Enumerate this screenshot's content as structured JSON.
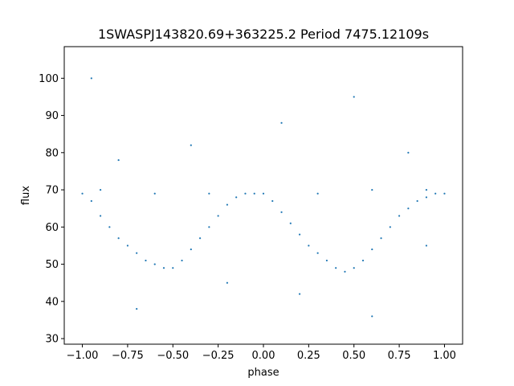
{
  "chart_data": {
    "type": "scatter",
    "title": "1SWASPJ143820.69+363225.2 Period 7475.12109s",
    "xlabel": "phase",
    "ylabel": "flux",
    "xlim": [
      -1.1,
      1.1
    ],
    "ylim": [
      28.5,
      108.5
    ],
    "xticks": [
      -1.0,
      -0.75,
      -0.5,
      -0.25,
      0.0,
      0.25,
      0.5,
      0.75,
      1.0
    ],
    "xtick_labels": [
      "−1.00",
      "−0.75",
      "−0.50",
      "−0.25",
      "0.00",
      "0.25",
      "0.50",
      "0.75",
      "1.00"
    ],
    "yticks": [
      30,
      40,
      50,
      60,
      70,
      80,
      90,
      100
    ],
    "ytick_labels": [
      "30",
      "40",
      "50",
      "60",
      "70",
      "80",
      "90",
      "100"
    ],
    "marker_color": "#1f77b4",
    "grid": false,
    "series": [
      {
        "description_points": "phase-folded light curve; dense band near flux 69 with eclipse dips to ~48 at phase -0.55 and 0.45",
        "points": [
          [
            -1.0,
            69
          ],
          [
            -0.95,
            67
          ],
          [
            -0.9,
            63
          ],
          [
            -0.85,
            60
          ],
          [
            -0.8,
            57
          ],
          [
            -0.75,
            55
          ],
          [
            -0.7,
            53
          ],
          [
            -0.65,
            51
          ],
          [
            -0.6,
            50
          ],
          [
            -0.55,
            49
          ],
          [
            -0.5,
            49
          ],
          [
            -0.45,
            51
          ],
          [
            -0.4,
            54
          ],
          [
            -0.35,
            57
          ],
          [
            -0.3,
            60
          ],
          [
            -0.25,
            63
          ],
          [
            -0.2,
            66
          ],
          [
            -0.15,
            68
          ],
          [
            -0.1,
            69
          ],
          [
            -0.05,
            69
          ],
          [
            0.0,
            69
          ],
          [
            0.05,
            67
          ],
          [
            0.1,
            64
          ],
          [
            0.15,
            61
          ],
          [
            0.2,
            58
          ],
          [
            0.25,
            55
          ],
          [
            0.3,
            53
          ],
          [
            0.35,
            51
          ],
          [
            0.4,
            49
          ],
          [
            0.45,
            48
          ],
          [
            0.5,
            49
          ],
          [
            0.55,
            51
          ],
          [
            0.6,
            54
          ],
          [
            0.65,
            57
          ],
          [
            0.7,
            60
          ],
          [
            0.75,
            63
          ],
          [
            0.8,
            65
          ],
          [
            0.85,
            67
          ],
          [
            0.9,
            68
          ],
          [
            0.95,
            69
          ],
          [
            1.0,
            69
          ],
          [
            -0.9,
            70
          ],
          [
            -0.6,
            69
          ],
          [
            -0.3,
            69
          ],
          [
            0.3,
            69
          ],
          [
            0.6,
            70
          ],
          [
            0.9,
            70
          ],
          [
            -0.8,
            78
          ],
          [
            -0.4,
            82
          ],
          [
            0.1,
            88
          ],
          [
            0.5,
            95
          ],
          [
            0.8,
            80
          ],
          [
            -0.95,
            100
          ],
          [
            -0.2,
            45
          ],
          [
            0.2,
            42
          ],
          [
            -0.7,
            38
          ],
          [
            0.6,
            36
          ],
          [
            0.9,
            55
          ]
        ]
      }
    ]
  }
}
